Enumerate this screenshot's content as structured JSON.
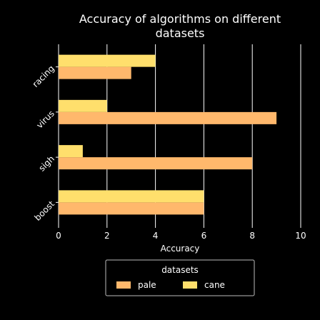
{
  "chart_data": {
    "type": "bar",
    "orientation": "horizontal",
    "title_line1": "Accuracy of algorithms on different",
    "title_line2": "datasets",
    "xlabel": "Accuracy",
    "ylabel": "",
    "xlim": [
      0,
      10
    ],
    "x_ticks": [
      "0",
      "2",
      "4",
      "6",
      "8",
      "10"
    ],
    "categories": [
      "boost",
      "sigh",
      "virus",
      "racing"
    ],
    "series": [
      {
        "name": "pale",
        "color": "#ffb86c",
        "values": [
          6,
          8,
          9,
          3
        ]
      },
      {
        "name": "cane",
        "color": "#ffdf6c",
        "values": [
          6,
          1,
          2,
          4
        ]
      }
    ],
    "legend_title": "datasets",
    "legend_position": "bottom",
    "grid": true
  }
}
